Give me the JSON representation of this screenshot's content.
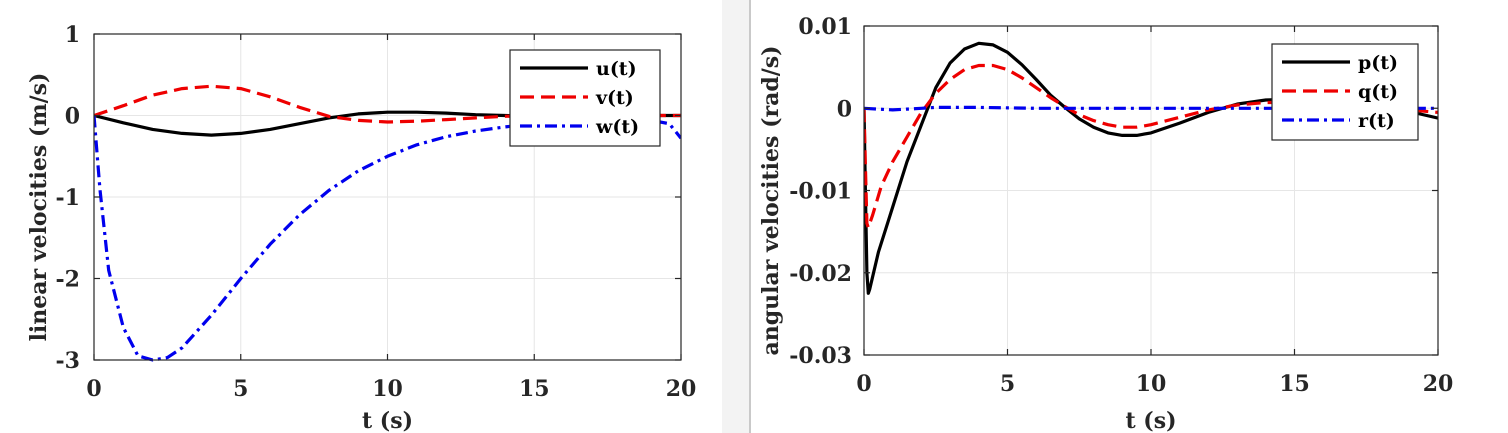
{
  "chart_data": [
    {
      "type": "line",
      "xlabel": "t (s)",
      "ylabel": "linear velocities (m/s)",
      "xlim": [
        0,
        20
      ],
      "ylim": [
        -3,
        1
      ],
      "xticks": [
        "0",
        "5",
        "10",
        "15",
        "20"
      ],
      "yticks": [
        "1",
        "0",
        "-1",
        "-2",
        "-3"
      ],
      "grid": true,
      "legend_position": "top-right",
      "series": [
        {
          "name": "u(t)",
          "color": "#000000",
          "style": "solid",
          "x": [
            0,
            1,
            2,
            3,
            4,
            5,
            6,
            7,
            8,
            9,
            10,
            11,
            12,
            13,
            14,
            15,
            16,
            17,
            18,
            19,
            20
          ],
          "values": [
            0,
            -0.09,
            -0.17,
            -0.22,
            -0.24,
            -0.22,
            -0.17,
            -0.1,
            -0.03,
            0.02,
            0.04,
            0.04,
            0.03,
            0.01,
            0,
            -0.01,
            -0.01,
            0,
            0,
            0,
            0
          ]
        },
        {
          "name": "v(t)",
          "color": "#ee0000",
          "style": "dashed",
          "x": [
            0,
            1,
            2,
            3,
            4,
            5,
            6,
            7,
            8,
            9,
            10,
            11,
            12,
            13,
            14,
            15,
            16,
            17,
            18,
            19,
            20
          ],
          "values": [
            0,
            0.12,
            0.25,
            0.33,
            0.36,
            0.33,
            0.23,
            0.1,
            -0.01,
            -0.06,
            -0.08,
            -0.07,
            -0.05,
            -0.03,
            -0.01,
            0,
            0.01,
            0.01,
            0,
            0,
            0
          ]
        },
        {
          "name": "w(t)",
          "color": "#0000ee",
          "style": "dashdot",
          "x": [
            0,
            0.2,
            0.5,
            1,
            1.5,
            2,
            2.5,
            3,
            4,
            5,
            6,
            7,
            8,
            9,
            10,
            11,
            12,
            13,
            14,
            15,
            16,
            17,
            18,
            19,
            19.6,
            20
          ],
          "values": [
            0,
            -0.9,
            -1.9,
            -2.6,
            -2.95,
            -3.0,
            -2.97,
            -2.85,
            -2.45,
            -2.0,
            -1.58,
            -1.22,
            -0.92,
            -0.68,
            -0.5,
            -0.36,
            -0.26,
            -0.19,
            -0.14,
            -0.1,
            -0.08,
            -0.07,
            -0.06,
            -0.06,
            -0.1,
            -0.28
          ]
        }
      ]
    },
    {
      "type": "line",
      "xlabel": "t (s)",
      "ylabel": "angular velocities (rad/s)",
      "xlim": [
        0,
        20
      ],
      "ylim": [
        -0.03,
        0.01
      ],
      "xticks": [
        "0",
        "5",
        "10",
        "15",
        "20"
      ],
      "yticks": [
        "0.01",
        "0",
        "-0.01",
        "-0.02",
        "-0.03"
      ],
      "grid": true,
      "legend_position": "top-right",
      "series": [
        {
          "name": "p(t)",
          "color": "#000000",
          "style": "solid",
          "x": [
            0,
            0.05,
            0.1,
            0.15,
            0.2,
            0.5,
            1,
            1.5,
            2,
            2.5,
            3,
            3.5,
            4,
            4.5,
            5,
            5.5,
            6,
            6.5,
            7,
            7.5,
            8,
            8.5,
            9,
            9.5,
            10,
            11,
            12,
            13,
            14,
            15,
            16,
            17,
            18,
            19,
            20
          ],
          "values": [
            0,
            -0.01,
            -0.02,
            -0.0225,
            -0.022,
            -0.0175,
            -0.012,
            -0.0065,
            -0.002,
            0.0025,
            0.0055,
            0.0072,
            0.0079,
            0.0077,
            0.0068,
            0.0053,
            0.0035,
            0.0016,
            0.0001,
            -0.0013,
            -0.0023,
            -0.003,
            -0.0033,
            -0.0033,
            -0.003,
            -0.0018,
            -0.0005,
            0.0005,
            0.001,
            0.0011,
            0.0009,
            0.0005,
            0.0001,
            -0.0004,
            -0.0012
          ]
        },
        {
          "name": "q(t)",
          "color": "#ee0000",
          "style": "dashed",
          "x": [
            0,
            0.05,
            0.1,
            0.15,
            0.3,
            0.6,
            1,
            1.5,
            2,
            2.5,
            3,
            3.5,
            4,
            4.5,
            5,
            5.5,
            6,
            6.5,
            7,
            7.5,
            8,
            8.5,
            9,
            9.5,
            10,
            11,
            12,
            13,
            14,
            15,
            16,
            17,
            18,
            19,
            20
          ],
          "values": [
            0,
            -0.007,
            -0.014,
            -0.0145,
            -0.013,
            -0.0095,
            -0.0065,
            -0.0035,
            -0.0005,
            0.0018,
            0.0035,
            0.0047,
            0.0052,
            0.0052,
            0.0047,
            0.0037,
            0.0025,
            0.0013,
            0.0002,
            -0.0008,
            -0.0015,
            -0.002,
            -0.0023,
            -0.0023,
            -0.002,
            -0.0011,
            -0.0002,
            0.0004,
            0.0007,
            0.0007,
            0.0006,
            0.0003,
            0.0001,
            -0.0002,
            -0.0005
          ]
        },
        {
          "name": "r(t)",
          "color": "#0000ee",
          "style": "dashdot",
          "x": [
            0,
            0.5,
            1,
            1.5,
            2,
            2.5,
            3,
            4,
            6,
            8,
            10,
            12,
            14,
            16,
            18,
            20
          ],
          "values": [
            0,
            -0.0001,
            -0.0002,
            -0.0001,
            0,
            0.0001,
            0.0001,
            0.0001,
            0,
            0,
            0,
            0,
            0,
            0,
            0,
            0
          ]
        }
      ]
    }
  ]
}
